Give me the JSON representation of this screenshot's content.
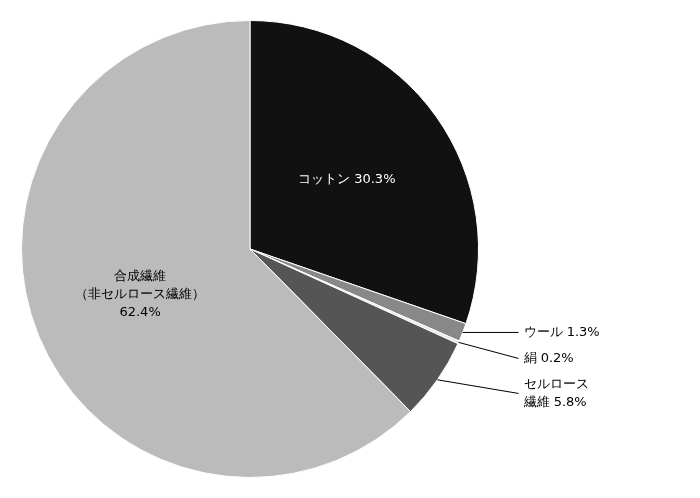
{
  "chart_data": {
    "type": "pie",
    "categories": [
      "コットン",
      "ウール",
      "絹",
      "セルロース繊維",
      "合成繊維（非セルロース繊維）"
    ],
    "values": [
      30.3,
      1.3,
      0.2,
      5.8,
      62.4
    ],
    "colors": [
      "#111111",
      "#888888",
      "#e8e8e8",
      "#555555",
      "#bbbbbb"
    ],
    "data_labels": true,
    "value_labels": [
      "コットン 30.3%",
      "ウール 1.3%",
      "絹 0.2%",
      "セルロース\n繊維 5.8%",
      "合成繊維\n（非セルロース繊維）\n62.4%"
    ]
  }
}
